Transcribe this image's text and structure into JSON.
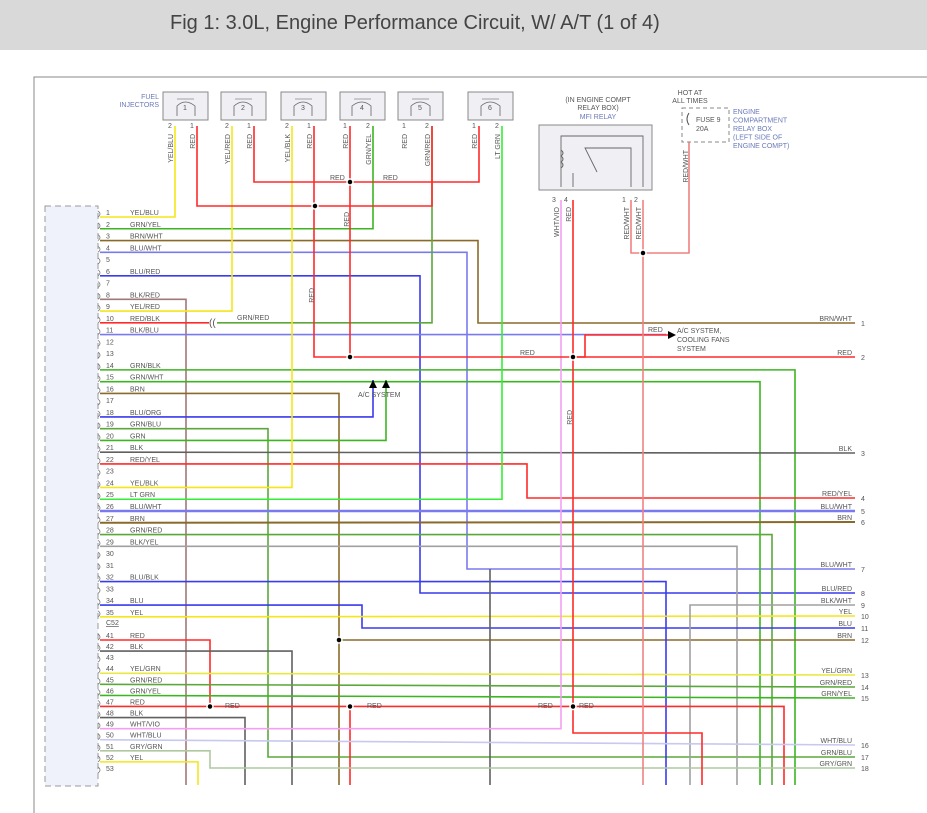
{
  "title": "Fig 1: 3.0L, Engine Performance Circuit, W/ A/T (1 of 4)",
  "wire_colors": {
    "RED": "#ff2a2a",
    "YEL": "#f5e61a",
    "GRN": "#3cb521",
    "LTGRN": "#33ee33",
    "BLU": "#3a3aee",
    "BLUWHT": "#7a7af0",
    "BRN": "#8a6a2a",
    "BLK": "#606060",
    "GRY": "#a0a0a0",
    "WHTVIO": "#f4a0f0",
    "WHTBLU": "#c8c8f0",
    "REDWHT": "#f08080",
    "GRYGRN": "#b0c8a0",
    "BLKRED": "#a07878",
    "GRNRED": "#5aa83a",
    "YELGRN": "#e8e840"
  },
  "injectors": {
    "label_line1": "FUEL",
    "label_line2": "INJECTORS",
    "items": [
      {
        "num": "1",
        "pins": [
          "2",
          "1"
        ],
        "wires": [
          "YEL/BLU",
          "RED"
        ]
      },
      {
        "num": "2",
        "pins": [
          "2",
          "1"
        ],
        "wires": [
          "YEL/RED",
          "RED"
        ]
      },
      {
        "num": "3",
        "pins": [
          "2",
          "1"
        ],
        "wires": [
          "YEL/BLK",
          "RED"
        ]
      },
      {
        "num": "4",
        "pins": [
          "1",
          "2"
        ],
        "wires": [
          "RED",
          "GRN/YEL"
        ]
      },
      {
        "num": "5",
        "pins": [
          "1",
          "2"
        ],
        "wires": [
          "RED",
          "GRN/RED"
        ]
      },
      {
        "num": "6",
        "pins": [
          "1",
          "2"
        ],
        "wires": [
          "RED",
          "LT GRN"
        ]
      }
    ]
  },
  "relay": {
    "location_line1": "(IN ENGINE COMPT",
    "location_line2": "RELAY BOX)",
    "name": "MFI RELAY",
    "pins": [
      "3",
      "4",
      "1",
      "2"
    ],
    "wires": [
      "WHT/VIO",
      "RED",
      "RED/WHT",
      "RED/WHT"
    ]
  },
  "fuse": {
    "hot_line1": "HOT AT",
    "hot_line2": "ALL TIMES",
    "name": "FUSE 9",
    "rating": "20A",
    "wire": "RED/WHT",
    "box_lines": [
      "ENGINE",
      "COMPARTMENT",
      "RELAY BOX",
      "(LEFT SIDE OF",
      "ENGINE COMPT)"
    ]
  },
  "ecm_pins": [
    {
      "pin": "1",
      "wire": "YEL/BLU"
    },
    {
      "pin": "2",
      "wire": "GRN/YEL"
    },
    {
      "pin": "3",
      "wire": "BRN/WHT"
    },
    {
      "pin": "4",
      "wire": "BLU/WHT"
    },
    {
      "pin": "5",
      "wire": ""
    },
    {
      "pin": "6",
      "wire": "BLU/RED"
    },
    {
      "pin": "7",
      "wire": ""
    },
    {
      "pin": "8",
      "wire": "BLK/RED"
    },
    {
      "pin": "9",
      "wire": "YEL/RED"
    },
    {
      "pin": "10",
      "wire": "RED/BLK"
    },
    {
      "pin": "11",
      "wire": "BLK/BLU"
    },
    {
      "pin": "12",
      "wire": ""
    },
    {
      "pin": "13",
      "wire": ""
    },
    {
      "pin": "14",
      "wire": "GRN/BLK"
    },
    {
      "pin": "15",
      "wire": "GRN/WHT"
    },
    {
      "pin": "16",
      "wire": "BRN"
    },
    {
      "pin": "17",
      "wire": ""
    },
    {
      "pin": "18",
      "wire": "BLU/ORG"
    },
    {
      "pin": "19",
      "wire": "GRN/BLU"
    },
    {
      "pin": "20",
      "wire": "GRN"
    },
    {
      "pin": "21",
      "wire": "BLK"
    },
    {
      "pin": "22",
      "wire": "RED/YEL"
    },
    {
      "pin": "23",
      "wire": ""
    },
    {
      "pin": "24",
      "wire": "YEL/BLK"
    },
    {
      "pin": "25",
      "wire": "LT GRN"
    },
    {
      "pin": "26",
      "wire": "BLU/WHT"
    },
    {
      "pin": "27",
      "wire": "BRN"
    },
    {
      "pin": "28",
      "wire": "GRN/RED"
    },
    {
      "pin": "29",
      "wire": "BLK/YEL"
    },
    {
      "pin": "30",
      "wire": ""
    },
    {
      "pin": "31",
      "wire": ""
    },
    {
      "pin": "32",
      "wire": "BLU/BLK"
    },
    {
      "pin": "33",
      "wire": ""
    },
    {
      "pin": "34",
      "wire": "BLU"
    },
    {
      "pin": "35",
      "wire": "YEL"
    },
    {
      "pin": "C52",
      "wire": ""
    },
    {
      "pin": "41",
      "wire": "RED"
    },
    {
      "pin": "42",
      "wire": "BLK"
    },
    {
      "pin": "43",
      "wire": ""
    },
    {
      "pin": "44",
      "wire": "YEL/GRN"
    },
    {
      "pin": "45",
      "wire": "GRN/RED"
    },
    {
      "pin": "46",
      "wire": "GRN/YEL"
    },
    {
      "pin": "47",
      "wire": "RED"
    },
    {
      "pin": "48",
      "wire": "BLK"
    },
    {
      "pin": "49",
      "wire": "WHT/VIO"
    },
    {
      "pin": "50",
      "wire": "WHT/BLU"
    },
    {
      "pin": "51",
      "wire": "GRY/GRN"
    },
    {
      "pin": "52",
      "wire": "YEL"
    },
    {
      "pin": "53",
      "wire": ""
    }
  ],
  "right_connector": [
    {
      "num": "1",
      "wire": "BRN/WHT"
    },
    {
      "num": "2",
      "wire": "RED"
    },
    {
      "num": "3",
      "wire": "BLK"
    },
    {
      "num": "4",
      "wire": "RED/YEL"
    },
    {
      "num": "5",
      "wire": "BLU/WHT"
    },
    {
      "num": "6",
      "wire": "BRN"
    },
    {
      "num": "7",
      "wire": "BLU/WHT"
    },
    {
      "num": "8",
      "wire": "BLU/RED"
    },
    {
      "num": "9",
      "wire": "BLK/WHT"
    },
    {
      "num": "10",
      "wire": "YEL"
    },
    {
      "num": "11",
      "wire": "BLU"
    },
    {
      "num": "12",
      "wire": "BRN"
    },
    {
      "num": "13",
      "wire": "YEL/GRN"
    },
    {
      "num": "14",
      "wire": "GRN/RED"
    },
    {
      "num": "15",
      "wire": "GRN/YEL"
    },
    {
      "num": "16",
      "wire": "WHT/BLU"
    },
    {
      "num": "17",
      "wire": "GRN/BLU"
    },
    {
      "num": "18",
      "wire": "GRY/GRN"
    }
  ],
  "annotations": {
    "ac_system": "A/C SYSTEM",
    "ac_cooling_line1": "A/C SYSTEM,",
    "ac_cooling_line2": "COOLING FANS",
    "ac_cooling_line3": "SYSTEM",
    "grn_red_label": "GRN/RED",
    "red": "RED"
  }
}
